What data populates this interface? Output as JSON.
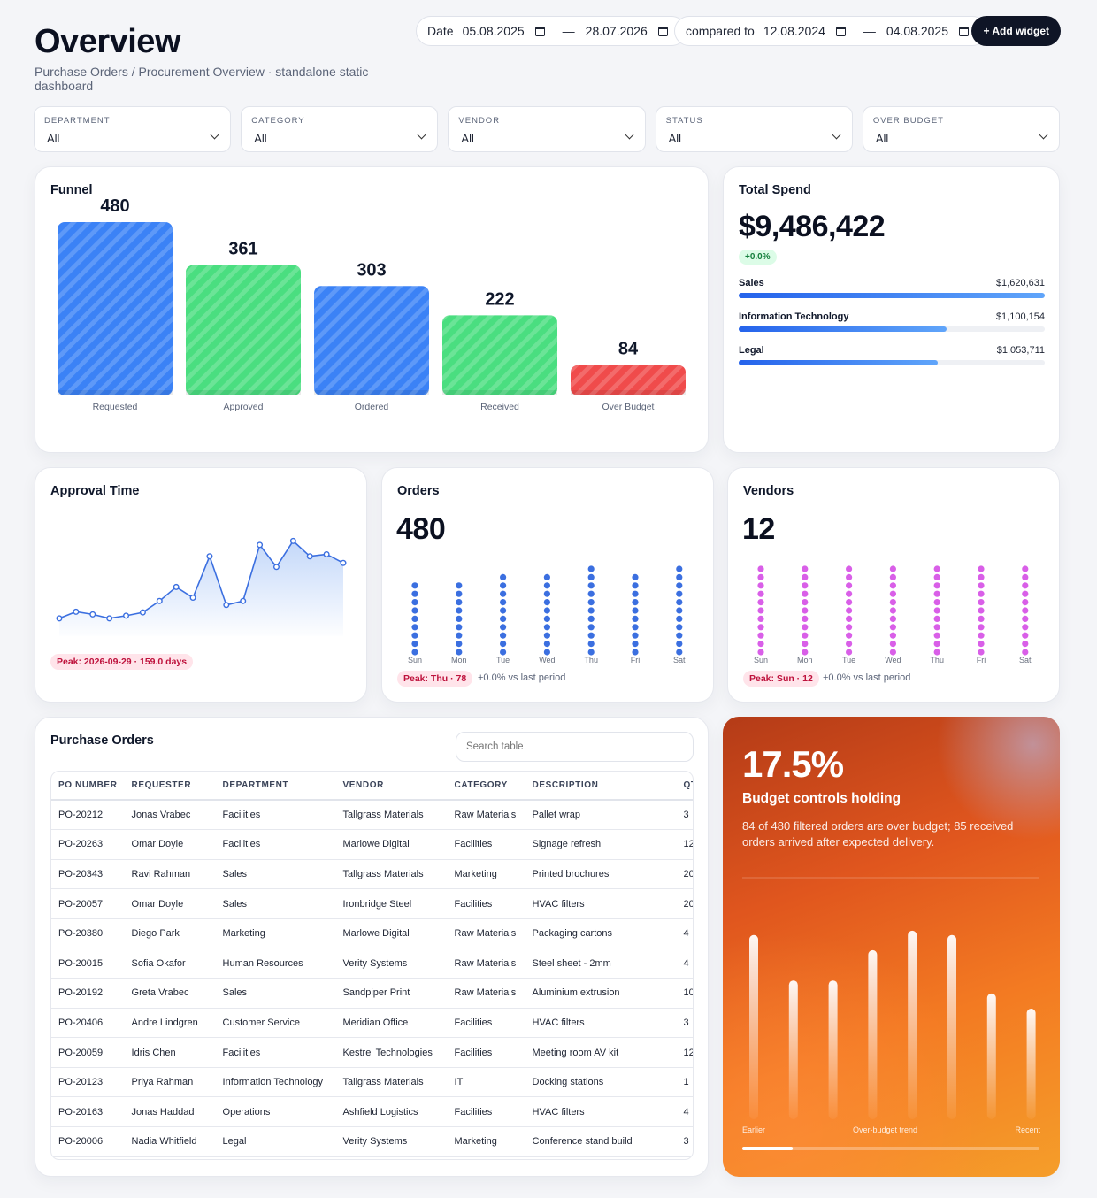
{
  "header": {
    "title": "Overview",
    "subtitle": "Purchase Orders / Procurement Overview · standalone static dashboard",
    "date_label": "Date",
    "date_from": "05.08.2025",
    "date_to": "28.07.2026",
    "compare_label": "compared to",
    "compare_from": "12.08.2024",
    "compare_to": "04.08.2025",
    "add_widget": "+ Add widget"
  },
  "filters": [
    {
      "label": "DEPARTMENT",
      "value": "All"
    },
    {
      "label": "CATEGORY",
      "value": "All"
    },
    {
      "label": "VENDOR",
      "value": "All"
    },
    {
      "label": "STATUS",
      "value": "All"
    },
    {
      "label": "OVER BUDGET",
      "value": "All"
    }
  ],
  "funnel": {
    "title": "Funnel",
    "chart_data": {
      "type": "bar",
      "categories": [
        "Requested",
        "Approved",
        "Ordered",
        "Received",
        "Over Budget"
      ],
      "values": [
        480,
        361,
        303,
        222,
        84
      ],
      "colors": [
        "#3b82f6",
        "#4ade80",
        "#3b82f6",
        "#4ade80",
        "#f04b4b"
      ],
      "ylim": [
        0,
        480
      ]
    }
  },
  "spend": {
    "title": "Total Spend",
    "value": "$9,486,422",
    "change": "+0.0%",
    "rows": [
      {
        "name": "Sales",
        "amount": "$1,620,631",
        "fraction": 1.0
      },
      {
        "name": "Information Technology",
        "amount": "$1,100,154",
        "fraction": 0.679
      },
      {
        "name": "Legal",
        "amount": "$1,053,711",
        "fraction": 0.65
      }
    ]
  },
  "approval": {
    "title": "Approval Time",
    "peak": "Peak: 2026-09-29 · 159.0 days",
    "chart_data": {
      "type": "area",
      "values": [
        20,
        30,
        26,
        20,
        24,
        29,
        46,
        67,
        51,
        113,
        40,
        46,
        130,
        97,
        136,
        113,
        116,
        103
      ],
      "ylim": [
        0,
        159
      ]
    }
  },
  "orders": {
    "title": "Orders",
    "value": "480",
    "peak": "Peak: Thu · 78",
    "vs": "+0.0% vs last period",
    "chart_data": {
      "type": "scatter",
      "categories": [
        "Sun",
        "Mon",
        "Tue",
        "Wed",
        "Thu",
        "Fri",
        "Sat"
      ],
      "dots": [
        9,
        9,
        10,
        10,
        11,
        10,
        11
      ],
      "color": "#3b6fe0"
    }
  },
  "vendors": {
    "title": "Vendors",
    "value": "12",
    "peak": "Peak: Sun · 12",
    "vs": "+0.0% vs last period",
    "chart_data": {
      "type": "scatter",
      "categories": [
        "Sun",
        "Mon",
        "Tue",
        "Wed",
        "Thu",
        "Fri",
        "Sat"
      ],
      "dots": [
        11,
        11,
        11,
        11,
        11,
        11,
        11
      ],
      "color": "#d95fe8"
    }
  },
  "po": {
    "title": "Purchase Orders",
    "search_placeholder": "Search table",
    "columns": [
      "PO NUMBER",
      "REQUESTER",
      "DEPARTMENT",
      "VENDOR",
      "CATEGORY",
      "DESCRIPTION",
      "QTY"
    ],
    "rows": [
      [
        "PO-20212",
        "Jonas Vrabec",
        "Facilities",
        "Tallgrass Materials",
        "Raw Materials",
        "Pallet wrap",
        "3"
      ],
      [
        "PO-20263",
        "Omar Doyle",
        "Facilities",
        "Marlowe Digital",
        "Facilities",
        "Signage refresh",
        "12"
      ],
      [
        "PO-20343",
        "Ravi Rahman",
        "Sales",
        "Tallgrass Materials",
        "Marketing",
        "Printed brochures",
        "20"
      ],
      [
        "PO-20057",
        "Omar Doyle",
        "Sales",
        "Ironbridge Steel",
        "Facilities",
        "HVAC filters",
        "20"
      ],
      [
        "PO-20380",
        "Diego Park",
        "Marketing",
        "Marlowe Digital",
        "Raw Materials",
        "Packaging cartons",
        "4"
      ],
      [
        "PO-20015",
        "Sofia Okafor",
        "Human Resources",
        "Verity Systems",
        "Raw Materials",
        "Steel sheet - 2mm",
        "4"
      ],
      [
        "PO-20192",
        "Greta Vrabec",
        "Sales",
        "Sandpiper Print",
        "Raw Materials",
        "Aluminium extrusion",
        "10"
      ],
      [
        "PO-20406",
        "Andre Lindgren",
        "Customer Service",
        "Meridian Office",
        "Facilities",
        "HVAC filters",
        "3"
      ],
      [
        "PO-20059",
        "Idris Chen",
        "Facilities",
        "Kestrel Technologies",
        "Facilities",
        "Meeting room AV kit",
        "12"
      ],
      [
        "PO-20123",
        "Priya Rahman",
        "Information Technology",
        "Tallgrass Materials",
        "IT",
        "Docking stations",
        "1"
      ],
      [
        "PO-20163",
        "Jonas Haddad",
        "Operations",
        "Ashfield Logistics",
        "Facilities",
        "HVAC filters",
        "4"
      ],
      [
        "PO-20006",
        "Nadia Whitfield",
        "Legal",
        "Verity Systems",
        "Marketing",
        "Conference stand build",
        "3"
      ]
    ]
  },
  "budget": {
    "value": "17.5%",
    "headline": "Budget controls holding",
    "description": "84 of 480 filtered orders are over budget; 85 received orders arrived after expected delivery.",
    "label_left": "Earlier",
    "label_mid": "Over-budget trend",
    "label_right": "Recent",
    "progress": 0.17,
    "chart_data": {
      "type": "bar",
      "values": [
        0.85,
        0.64,
        0.64,
        0.78,
        0.87,
        0.85,
        0.58,
        0.51
      ],
      "ylim": [
        0,
        1
      ]
    }
  }
}
